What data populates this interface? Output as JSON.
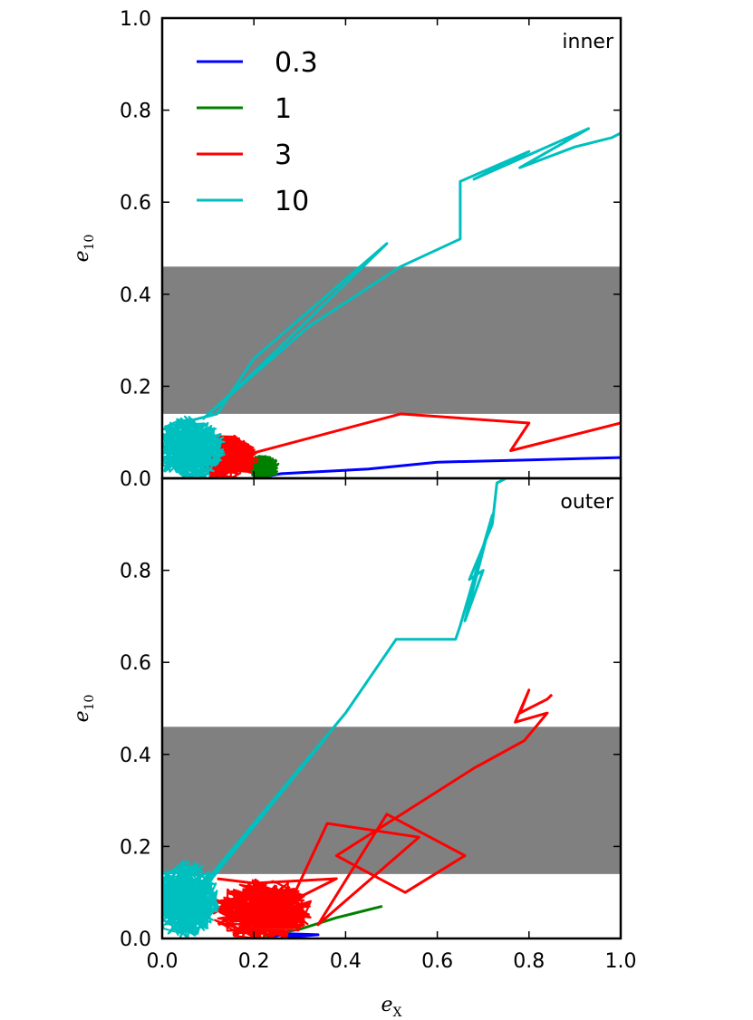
{
  "chart_data": [
    {
      "type": "line",
      "panel_label": "inner",
      "xlim": [
        0.0,
        1.0
      ],
      "ylim": [
        0.0,
        1.0
      ],
      "x_ticks": [
        "0.0",
        "0.2",
        "0.4",
        "0.6",
        "0.8",
        "1.0"
      ],
      "y_ticks": [
        "0.0",
        "0.2",
        "0.4",
        "0.6",
        "0.8",
        "1.0"
      ],
      "ylabel": {
        "main": "e",
        "sub": "10"
      },
      "grid": false,
      "legend": {
        "placement": "top-left",
        "entries": [
          {
            "label": "0.3",
            "color": "#0000ff"
          },
          {
            "label": "1",
            "color": "#008000"
          },
          {
            "label": "3",
            "color": "#ff0000"
          },
          {
            "label": "10",
            "color": "#00bfbf"
          }
        ]
      },
      "shaded_band": {
        "y_range": [
          0.14,
          0.46
        ],
        "color": "#808080"
      },
      "series": [
        {
          "name": "0.3",
          "color": "#0000ff",
          "points": [
            [
              0.2,
              0.0
            ],
            [
              0.26,
              0.01
            ],
            [
              0.45,
              0.02
            ],
            [
              0.6,
              0.035
            ],
            [
              0.8,
              0.04
            ],
            [
              1.0,
              0.045
            ]
          ]
        },
        {
          "name": "1",
          "color": "#008000",
          "points": [
            [
              0.18,
              0.02
            ],
            [
              0.21,
              0.04
            ],
            [
              0.24,
              0.03
            ],
            [
              0.25,
              0.01
            ],
            [
              0.22,
              0.005
            ]
          ],
          "cluster": {
            "cx": 0.22,
            "cy": 0.025,
            "rx": 0.035,
            "ry": 0.025
          }
        },
        {
          "name": "3",
          "color": "#ff0000",
          "points": [
            [
              0.18,
              0.05
            ],
            [
              0.52,
              0.14
            ],
            [
              0.8,
              0.12
            ],
            [
              0.76,
              0.06
            ],
            [
              1.0,
              0.12
            ]
          ],
          "cluster": {
            "cx": 0.14,
            "cy": 0.045,
            "rx": 0.07,
            "ry": 0.05
          }
        },
        {
          "name": "10",
          "color": "#00bfbf",
          "points": [
            [
              0.04,
              0.12
            ],
            [
              0.12,
              0.14
            ],
            [
              0.2,
              0.26
            ],
            [
              0.49,
              0.51
            ],
            [
              0.2,
              0.23
            ],
            [
              0.09,
              0.13
            ],
            [
              0.32,
              0.33
            ],
            [
              0.52,
              0.46
            ],
            [
              0.65,
              0.52
            ],
            [
              0.65,
              0.645
            ],
            [
              0.8,
              0.71
            ],
            [
              0.68,
              0.65
            ],
            [
              0.93,
              0.76
            ],
            [
              0.78,
              0.675
            ],
            [
              0.9,
              0.72
            ],
            [
              0.96,
              0.735
            ],
            [
              0.98,
              0.74
            ],
            [
              1.0,
              0.75
            ]
          ],
          "cluster": {
            "cx": 0.06,
            "cy": 0.065,
            "rx": 0.08,
            "ry": 0.07
          }
        }
      ]
    },
    {
      "type": "line",
      "panel_label": "outer",
      "xlim": [
        0.0,
        1.0
      ],
      "ylim": [
        0.0,
        1.0
      ],
      "x_ticks": [
        "0.0",
        "0.2",
        "0.4",
        "0.6",
        "0.8",
        "1.0"
      ],
      "y_ticks": [
        "0.0",
        "0.2",
        "0.4",
        "0.6",
        "0.8"
      ],
      "xlabel": {
        "main": "e",
        "sub": "X"
      },
      "ylabel": {
        "main": "e",
        "sub": "10"
      },
      "grid": false,
      "shaded_band": {
        "y_range": [
          0.14,
          0.46
        ],
        "color": "#808080"
      },
      "series": [
        {
          "name": "0.3",
          "color": "#0000ff",
          "points": [
            [
              0.24,
              0.005
            ],
            [
              0.28,
              0.01
            ],
            [
              0.34,
              0.008
            ],
            [
              0.3,
              0.005
            ],
            [
              0.26,
              0.005
            ]
          ]
        },
        {
          "name": "1",
          "color": "#008000",
          "points": [
            [
              0.22,
              0.005
            ],
            [
              0.3,
              0.02
            ],
            [
              0.38,
              0.045
            ],
            [
              0.44,
              0.06
            ],
            [
              0.48,
              0.07
            ]
          ]
        },
        {
          "name": "3",
          "color": "#ff0000",
          "points": [
            [
              0.12,
              0.13
            ],
            [
              0.2,
              0.12
            ],
            [
              0.38,
              0.13
            ],
            [
              0.28,
              0.08
            ],
            [
              0.36,
              0.25
            ],
            [
              0.56,
              0.22
            ],
            [
              0.34,
              0.03
            ],
            [
              0.49,
              0.27
            ],
            [
              0.66,
              0.18
            ],
            [
              0.53,
              0.1
            ],
            [
              0.38,
              0.18
            ],
            [
              0.68,
              0.37
            ],
            [
              0.79,
              0.43
            ],
            [
              0.84,
              0.49
            ],
            [
              0.77,
              0.47
            ],
            [
              0.8,
              0.54
            ],
            [
              0.78,
              0.49
            ],
            [
              0.84,
              0.52
            ],
            [
              0.85,
              0.53
            ]
          ],
          "cluster": {
            "cx": 0.22,
            "cy": 0.06,
            "rx": 0.11,
            "ry": 0.07
          }
        },
        {
          "name": "10",
          "color": "#00bfbf",
          "points": [
            [
              0.1,
              0.12
            ],
            [
              0.36,
              0.44
            ],
            [
              0.1,
              0.13
            ],
            [
              0.4,
              0.49
            ],
            [
              0.51,
              0.65
            ],
            [
              0.64,
              0.65
            ],
            [
              0.65,
              0.68
            ],
            [
              0.72,
              0.92
            ],
            [
              0.66,
              0.69
            ],
            [
              0.7,
              0.8
            ],
            [
              0.67,
              0.78
            ],
            [
              0.72,
              0.9
            ],
            [
              0.73,
              0.99
            ],
            [
              0.75,
              1.0
            ]
          ],
          "cluster": {
            "cx": 0.05,
            "cy": 0.085,
            "rx": 0.075,
            "ry": 0.085
          }
        }
      ]
    }
  ]
}
